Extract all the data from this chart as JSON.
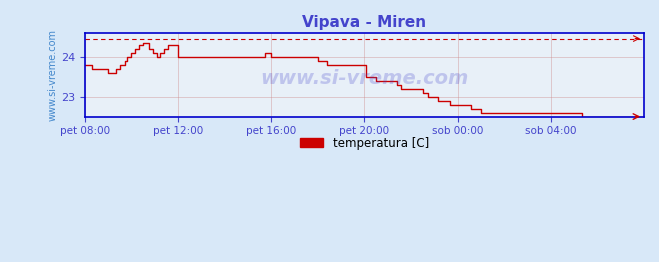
{
  "title": "Vipava - Miren",
  "title_color": "#4444cc",
  "bg_color": "#d8e8f8",
  "plot_bg_color": "#e8f0f8",
  "line_color": "#cc0000",
  "dashed_line_color": "#cc0000",
  "axis_color": "#0000cc",
  "tick_color": "#4444cc",
  "grid_color": "#cc8888",
  "watermark_color": "#4444cc",
  "legend_label": "temperatura [C]",
  "legend_color": "#cc0000",
  "ylabel_text": "www.si-vreme.com",
  "ylabel_color": "#4488cc",
  "xlim": [
    0,
    288
  ],
  "ylim": [
    22.5,
    24.6
  ],
  "yticks": [
    23,
    24
  ],
  "xtick_labels": [
    "pet 08:00",
    "pet 12:00",
    "pet 16:00",
    "pet 20:00",
    "sob 00:00",
    "sob 04:00"
  ],
  "xtick_positions": [
    0,
    48,
    96,
    144,
    192,
    240
  ],
  "dashed_y": 24.45,
  "temperature_data": [
    23.8,
    23.8,
    23.8,
    23.8,
    23.7,
    23.7,
    23.7,
    23.7,
    23.7,
    23.7,
    23.7,
    23.7,
    23.6,
    23.6,
    23.6,
    23.6,
    23.7,
    23.7,
    23.8,
    23.8,
    23.8,
    23.9,
    24.0,
    24.0,
    24.1,
    24.1,
    24.2,
    24.2,
    24.3,
    24.3,
    24.35,
    24.35,
    24.35,
    24.2,
    24.2,
    24.1,
    24.1,
    24.0,
    24.0,
    24.1,
    24.1,
    24.2,
    24.2,
    24.3,
    24.3,
    24.3,
    24.3,
    24.3,
    24.0,
    24.0,
    24.0,
    24.0,
    24.0,
    24.0,
    24.0,
    24.0,
    24.0,
    24.0,
    24.0,
    24.0,
    24.0,
    24.0,
    24.0,
    24.0,
    24.0,
    24.0,
    24.0,
    24.0,
    24.0,
    24.0,
    24.0,
    24.0,
    24.0,
    24.0,
    24.0,
    24.0,
    24.0,
    24.0,
    24.0,
    24.0,
    24.0,
    24.0,
    24.0,
    24.0,
    24.0,
    24.0,
    24.0,
    24.0,
    24.0,
    24.0,
    24.0,
    24.0,
    24.0,
    24.1,
    24.1,
    24.1,
    24.0,
    24.0,
    24.0,
    24.0,
    24.0,
    24.0,
    24.0,
    24.0,
    24.0,
    24.0,
    24.0,
    24.0,
    24.0,
    24.0,
    24.0,
    24.0,
    24.0,
    24.0,
    24.0,
    24.0,
    24.0,
    24.0,
    24.0,
    24.0,
    23.9,
    23.9,
    23.9,
    23.9,
    23.9,
    23.8,
    23.8,
    23.8,
    23.8,
    23.8,
    23.8,
    23.8,
    23.8,
    23.8,
    23.8,
    23.8,
    23.8,
    23.8,
    23.8,
    23.8,
    23.8,
    23.8,
    23.8,
    23.8,
    23.8,
    23.5,
    23.5,
    23.5,
    23.5,
    23.5,
    23.4,
    23.4,
    23.4,
    23.4,
    23.4,
    23.4,
    23.4,
    23.4,
    23.4,
    23.4,
    23.4,
    23.3,
    23.3,
    23.2,
    23.2,
    23.2,
    23.2,
    23.2,
    23.2,
    23.2,
    23.2,
    23.2,
    23.2,
    23.2,
    23.1,
    23.1,
    23.1,
    23.0,
    23.0,
    23.0,
    23.0,
    23.0,
    22.9,
    22.9,
    22.9,
    22.9,
    22.9,
    22.9,
    22.8,
    22.8,
    22.8,
    22.8,
    22.8,
    22.8,
    22.8,
    22.8,
    22.8,
    22.8,
    22.8,
    22.7,
    22.7,
    22.7,
    22.7,
    22.7,
    22.6,
    22.6,
    22.6,
    22.6,
    22.6,
    22.6,
    22.6,
    22.6,
    22.6,
    22.6,
    22.6,
    22.6,
    22.6,
    22.6,
    22.6,
    22.6,
    22.6,
    22.6,
    22.6,
    22.6,
    22.6,
    22.6,
    22.6,
    22.6,
    22.6,
    22.6,
    22.6,
    22.6,
    22.6,
    22.6,
    22.6,
    22.6,
    22.6,
    22.6,
    22.6,
    22.6,
    22.6,
    22.6,
    22.6,
    22.6,
    22.6,
    22.6,
    22.6,
    22.6,
    22.6,
    22.6,
    22.6,
    22.6,
    22.6,
    22.6,
    22.6,
    22.6,
    22.5,
    22.5,
    22.5,
    22.5,
    22.5,
    22.5,
    22.5,
    22.5,
    22.5,
    22.5,
    22.5,
    22.5,
    22.5,
    22.5,
    22.5,
    22.5,
    22.5,
    22.5,
    22.5,
    22.5,
    22.5,
    22.5,
    22.5,
    22.5,
    22.5,
    22.5,
    22.5,
    22.5,
    22.5,
    22.5,
    22.5,
    22.5
  ]
}
